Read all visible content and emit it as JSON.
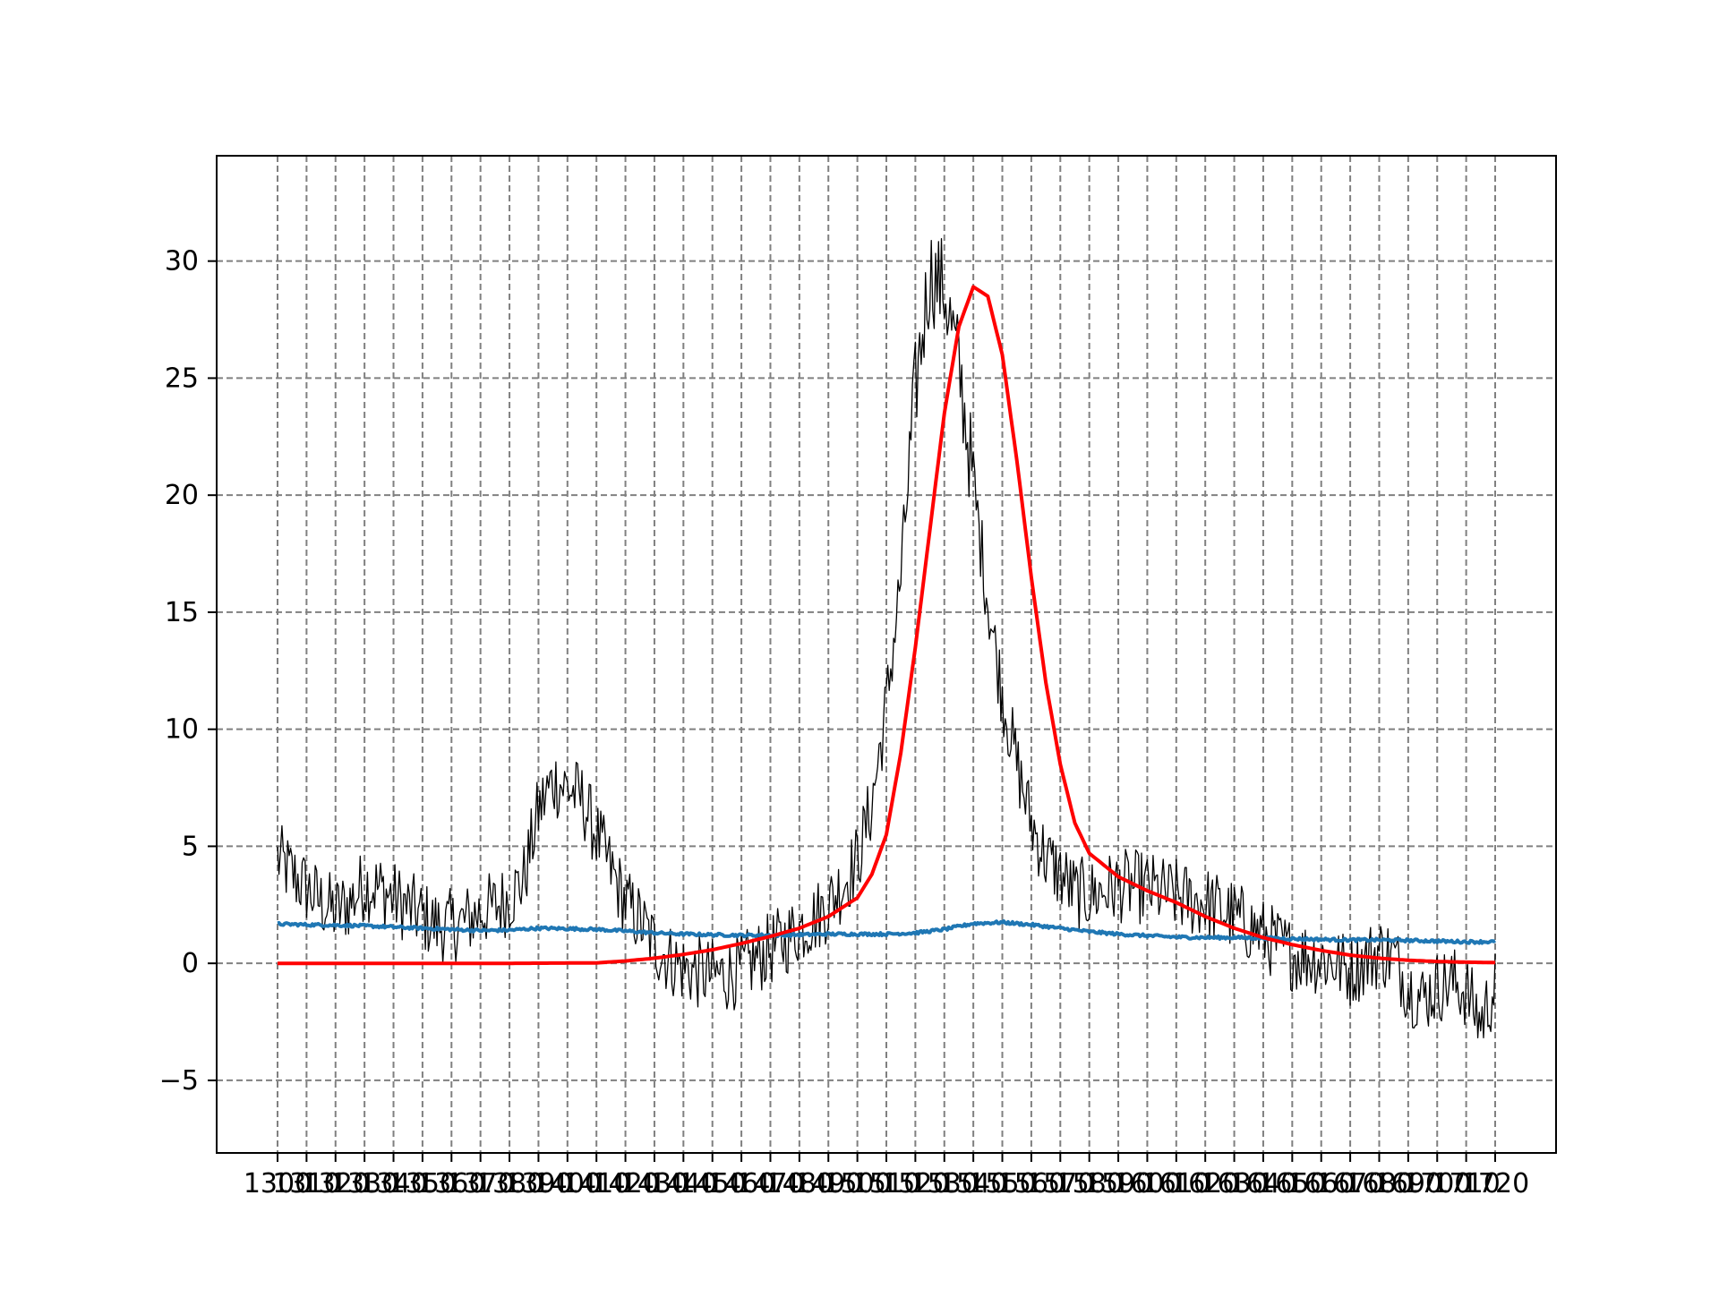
{
  "chart_data": {
    "type": "line",
    "title": "",
    "xlabel": "",
    "ylabel": "",
    "xlim": [
      1300,
      1720
    ],
    "ylim": [
      -8.1,
      34.5
    ],
    "grid": true,
    "grid_style": "dashed",
    "legend": "none",
    "y_ticks": [
      -5,
      0,
      5,
      10,
      15,
      20,
      25,
      30
    ],
    "y_tick_labels": [
      "−5",
      "0",
      "5",
      "10",
      "15",
      "20",
      "25",
      "30"
    ],
    "x_ticks": [
      1300,
      1310,
      1320,
      1330,
      1340,
      1350,
      1360,
      1370,
      1380,
      1390,
      1400,
      1410,
      1420,
      1430,
      1440,
      1450,
      1460,
      1470,
      1480,
      1490,
      1500,
      1510,
      1520,
      1530,
      1540,
      1550,
      1560,
      1570,
      1580,
      1590,
      1600,
      1610,
      1620,
      1630,
      1640,
      1650,
      1660,
      1670,
      1680,
      1690,
      1700,
      1710,
      1720
    ],
    "x_tick_labels": [
      "1300",
      "1310",
      "1320",
      "1330",
      "1340",
      "1350",
      "1360",
      "1370",
      "1380",
      "1390",
      "1400",
      "1410",
      "1420",
      "1430",
      "1440",
      "1450",
      "1460",
      "1470",
      "1480",
      "1490",
      "1500",
      "1510",
      "1520",
      "1530",
      "1540",
      "1550",
      "1560",
      "1570",
      "1580",
      "1590",
      "1600",
      "1610",
      "1620",
      "1630",
      "1640",
      "1650",
      "1660",
      "1670",
      "1680",
      "1690",
      "1700",
      "1710",
      "1720"
    ],
    "series": [
      {
        "role": "noisy-measurement",
        "color": "#000000",
        "x": [
          1300,
          1305,
          1310,
          1315,
          1320,
          1325,
          1330,
          1335,
          1340,
          1345,
          1350,
          1355,
          1360,
          1365,
          1370,
          1375,
          1380,
          1385,
          1390,
          1395,
          1400,
          1405,
          1410,
          1415,
          1420,
          1425,
          1430,
          1435,
          1440,
          1445,
          1450,
          1455,
          1460,
          1465,
          1470,
          1475,
          1480,
          1485,
          1490,
          1495,
          1500,
          1505,
          1510,
          1515,
          1520,
          1525,
          1530,
          1535,
          1540,
          1545,
          1550,
          1555,
          1560,
          1565,
          1570,
          1575,
          1580,
          1585,
          1590,
          1595,
          1600,
          1605,
          1610,
          1615,
          1620,
          1625,
          1630,
          1635,
          1640,
          1645,
          1650,
          1655,
          1660,
          1665,
          1670,
          1675,
          1680,
          1685,
          1690,
          1695,
          1700,
          1705,
          1710,
          1715,
          1720
        ],
        "y": [
          4.5,
          3.8,
          3.2,
          2.6,
          2.2,
          2.6,
          3.4,
          3.2,
          2.8,
          2.4,
          2.0,
          1.6,
          1.6,
          1.8,
          2.2,
          2.4,
          2.8,
          3.6,
          6.5,
          7.8,
          7.5,
          7.0,
          5.5,
          4.0,
          2.6,
          1.8,
          0.8,
          0.2,
          -0.2,
          -0.4,
          -0.5,
          -0.5,
          -0.3,
          0.2,
          0.6,
          1.0,
          1.5,
          1.9,
          2.5,
          3.4,
          4.4,
          6.8,
          11.0,
          16.5,
          24.5,
          29.5,
          28.8,
          25.5,
          20.5,
          15.5,
          11.5,
          8.5,
          6.0,
          4.5,
          3.8,
          3.0,
          2.9,
          3.1,
          3.3,
          3.3,
          3.2,
          3.0,
          2.9,
          2.7,
          2.6,
          2.3,
          2.0,
          1.6,
          1.2,
          0.8,
          0.4,
          0.3,
          0.2,
          0.0,
          -0.3,
          0.1,
          0.5,
          0.3,
          -1.0,
          -1.5,
          -1.0,
          -0.8,
          -1.2,
          -2.5,
          -1.0
        ]
      },
      {
        "role": "baseline",
        "color": "#1f77b4",
        "x": [
          1300,
          1310,
          1320,
          1330,
          1340,
          1350,
          1360,
          1370,
          1380,
          1390,
          1400,
          1410,
          1420,
          1430,
          1440,
          1450,
          1460,
          1470,
          1480,
          1490,
          1500,
          1510,
          1520,
          1530,
          1540,
          1550,
          1560,
          1570,
          1580,
          1590,
          1600,
          1610,
          1620,
          1630,
          1640,
          1650,
          1660,
          1670,
          1680,
          1690,
          1700,
          1710,
          1720
        ],
        "y": [
          1.68,
          1.65,
          1.63,
          1.6,
          1.55,
          1.5,
          1.45,
          1.4,
          1.42,
          1.5,
          1.48,
          1.45,
          1.38,
          1.3,
          1.25,
          1.22,
          1.2,
          1.2,
          1.22,
          1.25,
          1.25,
          1.25,
          1.3,
          1.45,
          1.7,
          1.75,
          1.65,
          1.5,
          1.35,
          1.25,
          1.18,
          1.12,
          1.1,
          1.1,
          1.08,
          1.05,
          1.02,
          1.0,
          1.0,
          0.98,
          0.95,
          0.92,
          0.92
        ]
      },
      {
        "role": "fitted-curve",
        "color": "#ff0000",
        "x": [
          1300,
          1340,
          1380,
          1410,
          1420,
          1430,
          1440,
          1450,
          1460,
          1470,
          1480,
          1490,
          1500,
          1505,
          1510,
          1515,
          1520,
          1525,
          1530,
          1535,
          1540,
          1545,
          1550,
          1555,
          1560,
          1565,
          1570,
          1575,
          1580,
          1590,
          1600,
          1610,
          1620,
          1630,
          1640,
          1650,
          1660,
          1670,
          1680,
          1690,
          1700,
          1710,
          1720
        ],
        "y": [
          0,
          0,
          0,
          0.02,
          0.1,
          0.22,
          0.38,
          0.58,
          0.85,
          1.15,
          1.5,
          2.0,
          2.8,
          3.8,
          5.5,
          9.0,
          13.5,
          18.5,
          23.5,
          27.2,
          28.9,
          28.5,
          26.0,
          21.5,
          16.5,
          12.0,
          8.5,
          6.0,
          4.7,
          3.7,
          3.1,
          2.6,
          2.0,
          1.5,
          1.1,
          0.8,
          0.55,
          0.35,
          0.22,
          0.13,
          0.08,
          0.05,
          0.03
        ]
      }
    ]
  }
}
